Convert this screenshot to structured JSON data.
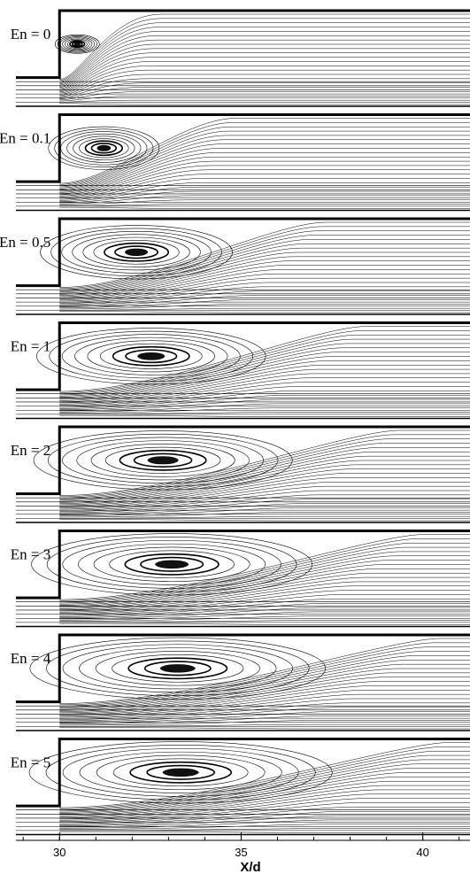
{
  "figure": {
    "panels": [
      {
        "label": "En = 0",
        "vortex_length": 0.12,
        "vortex_height": 0.14
      },
      {
        "label": "En = 0.1",
        "vortex_length": 0.3,
        "vortex_height": 0.32
      },
      {
        "label": "En = 0.5",
        "vortex_length": 0.52,
        "vortex_height": 0.4
      },
      {
        "label": "En = 1",
        "vortex_length": 0.62,
        "vortex_height": 0.42
      },
      {
        "label": "En = 2",
        "vortex_length": 0.7,
        "vortex_height": 0.44
      },
      {
        "label": "En = 3",
        "vortex_length": 0.76,
        "vortex_height": 0.46
      },
      {
        "label": "En = 4",
        "vortex_length": 0.8,
        "vortex_height": 0.46
      },
      {
        "label": "En = 5",
        "vortex_length": 0.82,
        "vortex_height": 0.46
      }
    ],
    "step_x": 30,
    "line_color": "#000000",
    "wall_color": "#000000"
  },
  "x_axis": {
    "title": "X/d",
    "min": 28.8,
    "max": 41.3,
    "major_ticks": [
      30,
      35,
      40
    ],
    "tick_labels": [
      "30",
      "35",
      "40"
    ],
    "minor_step": 1
  }
}
